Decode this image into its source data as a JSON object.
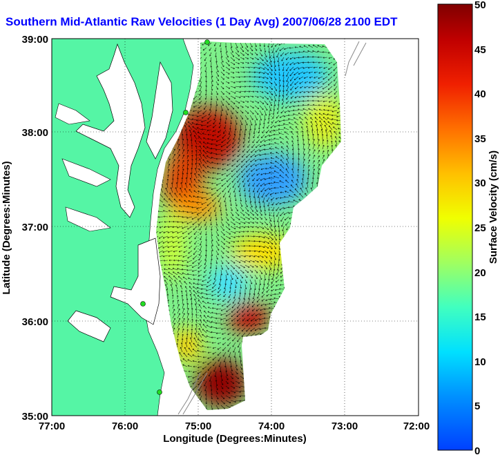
{
  "title": "Southern Mid-Atlantic Raw Velocities (1 Day Avg) 2007/06/28 2100 EDT",
  "xaxis": {
    "label": "Longitude (Degrees:Minutes)",
    "ticks": [
      "77:00",
      "76:00",
      "75:00",
      "74:00",
      "73:00",
      "72:00"
    ]
  },
  "yaxis": {
    "label": "Latitude (Degrees:Minutes)",
    "ticks": [
      "39:00",
      "38:00",
      "37:00",
      "36:00",
      "35:00"
    ]
  },
  "colorbar": {
    "label": "Surface Velocity (cm/s)",
    "ticks": [
      "50",
      "45",
      "40",
      "35",
      "30",
      "25",
      "20",
      "15",
      "10",
      "5",
      "0"
    ],
    "min": 0,
    "max": 50
  },
  "colors": {
    "land": "#55f5a5",
    "title": "#0000ff",
    "station": "#22dd22"
  }
}
